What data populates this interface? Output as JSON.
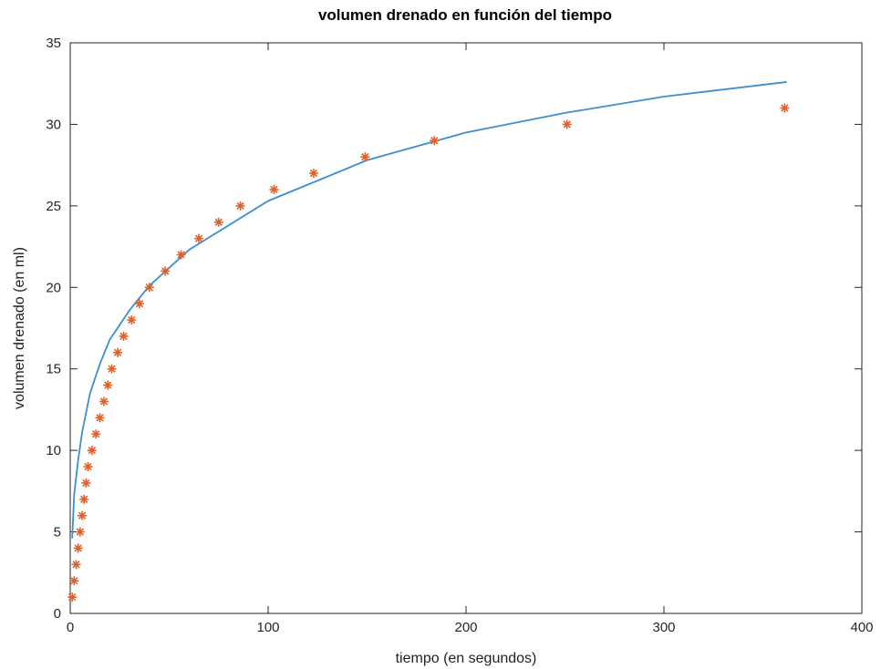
{
  "chart_data": {
    "type": "scatter",
    "title": "volumen drenado en función del tiempo",
    "xlabel": "tiempo (en segundos)",
    "ylabel": "volumen drenado (en ml)",
    "xlim": [
      0,
      400
    ],
    "ylim": [
      0,
      35
    ],
    "xticks": [
      0,
      100,
      200,
      300,
      400
    ],
    "yticks": [
      0,
      5,
      10,
      15,
      20,
      25,
      30,
      35
    ],
    "grid": false,
    "legend": "none",
    "colors": {
      "points": "#e0602a",
      "fit": "#3c8fd0"
    },
    "series": [
      {
        "kind": "points",
        "marker": "asterisk",
        "x": [
          1,
          2,
          3,
          4,
          5,
          6,
          7,
          8,
          9,
          11,
          13,
          15,
          17,
          19,
          21,
          24,
          27,
          31,
          35,
          40,
          48,
          56,
          65,
          75,
          86,
          103,
          123,
          149,
          184,
          251,
          361
        ],
        "y": [
          1,
          2,
          3,
          4,
          5,
          6,
          7,
          8,
          9,
          10,
          11,
          12,
          13,
          14,
          15,
          16,
          17,
          18,
          19,
          20,
          21,
          22,
          23,
          24,
          25,
          26,
          27,
          28,
          29,
          30,
          31
        ]
      },
      {
        "kind": "line",
        "x": [
          1,
          2,
          4,
          6,
          10,
          15,
          20,
          30,
          40,
          60,
          80,
          100,
          150,
          200,
          250,
          300,
          362
        ],
        "y": [
          4.6,
          7.3,
          9.4,
          11.1,
          13.5,
          15.3,
          16.8,
          18.6,
          20.1,
          22.3,
          23.8,
          25.3,
          27.8,
          29.5,
          30.7,
          31.7,
          32.6
        ]
      }
    ]
  }
}
